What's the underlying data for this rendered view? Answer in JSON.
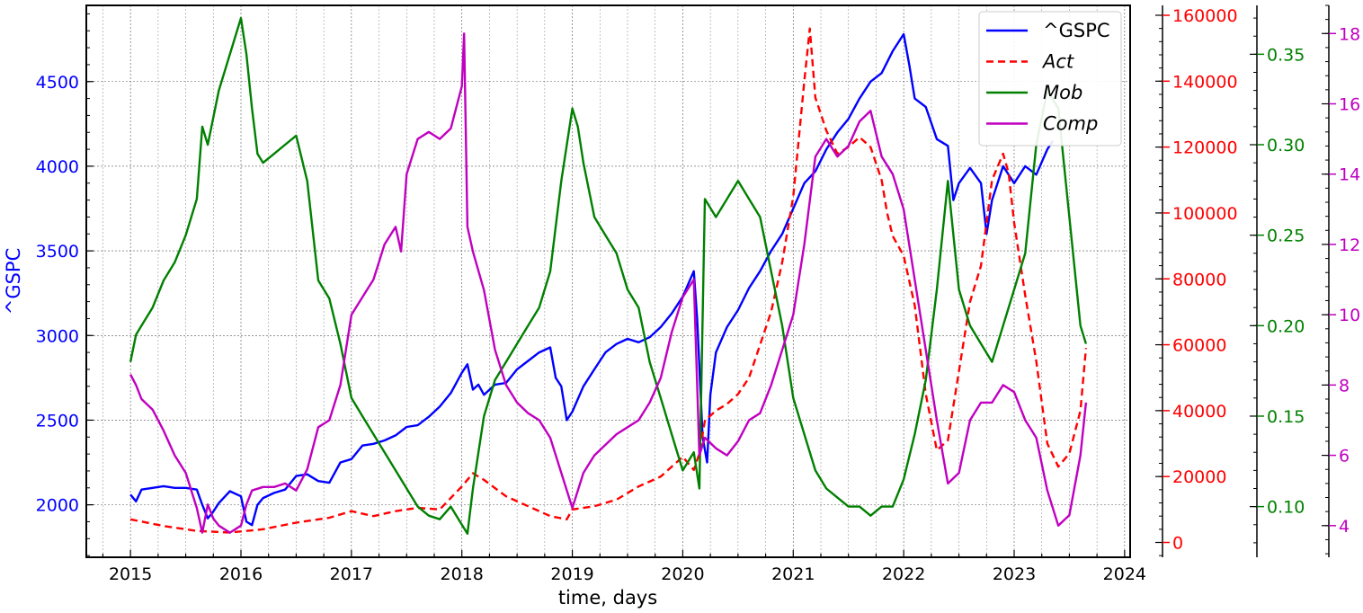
{
  "chart_data": {
    "type": "line",
    "xlabel": "time, days",
    "x_ticks": [
      "2015",
      "2016",
      "2017",
      "2018",
      "2019",
      "2020",
      "2021",
      "2022",
      "2023",
      "2024"
    ],
    "xlim": [
      2014.6,
      2024.05
    ],
    "axes": [
      {
        "id": "gspc",
        "label": "^GSPC",
        "color": "#0000ff",
        "lim": [
          1690,
          4950
        ],
        "ticks": [
          2000,
          2500,
          3000,
          3500,
          4000,
          4500
        ]
      },
      {
        "id": "act",
        "label": "",
        "color": "#ff0000",
        "lim": [
          -4500,
          163000
        ],
        "ticks": [
          0,
          20000,
          40000,
          60000,
          80000,
          100000,
          120000,
          140000,
          160000
        ]
      },
      {
        "id": "mob",
        "label": "",
        "color": "#008000",
        "lim": [
          0.072,
          0.377
        ],
        "ticks": [
          0.1,
          0.15,
          0.2,
          0.25,
          0.3,
          0.35
        ]
      },
      {
        "id": "comp",
        "label": "",
        "color": "#c000c0",
        "lim": [
          3.1,
          18.8
        ],
        "ticks": [
          4,
          6,
          8,
          10,
          12,
          14,
          16,
          18
        ]
      }
    ],
    "grid": true,
    "legend_position": "top-right",
    "legend": [
      "^GSPC",
      "Act",
      "Mob",
      "Comp"
    ],
    "series": [
      {
        "name": "^GSPC",
        "axis": "gspc",
        "color": "#0000ff",
        "dash": "solid",
        "x": [
          2015.0,
          2015.05,
          2015.1,
          2015.2,
          2015.3,
          2015.4,
          2015.5,
          2015.6,
          2015.65,
          2015.7,
          2015.75,
          2015.8,
          2015.9,
          2016.0,
          2016.05,
          2016.1,
          2016.15,
          2016.2,
          2016.3,
          2016.4,
          2016.5,
          2016.6,
          2016.7,
          2016.8,
          2016.9,
          2017.0,
          2017.1,
          2017.2,
          2017.3,
          2017.4,
          2017.5,
          2017.6,
          2017.7,
          2017.8,
          2017.9,
          2018.0,
          2018.05,
          2018.1,
          2018.15,
          2018.2,
          2018.3,
          2018.4,
          2018.5,
          2018.6,
          2018.7,
          2018.8,
          2018.85,
          2018.9,
          2018.95,
          2019.0,
          2019.1,
          2019.2,
          2019.3,
          2019.4,
          2019.5,
          2019.6,
          2019.7,
          2019.8,
          2019.9,
          2020.0,
          2020.1,
          2020.13,
          2020.18,
          2020.22,
          2020.25,
          2020.3,
          2020.4,
          2020.5,
          2020.6,
          2020.7,
          2020.8,
          2020.9,
          2021.0,
          2021.1,
          2021.2,
          2021.3,
          2021.4,
          2021.5,
          2021.6,
          2021.7,
          2021.8,
          2021.9,
          2022.0,
          2022.05,
          2022.1,
          2022.2,
          2022.3,
          2022.4,
          2022.45,
          2022.5,
          2022.6,
          2022.7,
          2022.75,
          2022.8,
          2022.9,
          2023.0,
          2023.1,
          2023.2,
          2023.3,
          2023.35
        ],
        "y": [
          2060,
          2020,
          2090,
          2100,
          2110,
          2100,
          2100,
          2090,
          2000,
          1920,
          1960,
          2010,
          2080,
          2050,
          1900,
          1880,
          2000,
          2040,
          2070,
          2090,
          2170,
          2180,
          2140,
          2130,
          2250,
          2270,
          2350,
          2360,
          2380,
          2410,
          2460,
          2470,
          2520,
          2580,
          2660,
          2780,
          2830,
          2680,
          2710,
          2650,
          2710,
          2720,
          2800,
          2850,
          2900,
          2930,
          2750,
          2700,
          2500,
          2550,
          2700,
          2800,
          2900,
          2950,
          2980,
          2960,
          2990,
          3050,
          3130,
          3230,
          3380,
          3100,
          2400,
          2250,
          2650,
          2900,
          3050,
          3150,
          3280,
          3380,
          3500,
          3600,
          3750,
          3900,
          3970,
          4100,
          4200,
          4280,
          4400,
          4500,
          4550,
          4680,
          4780,
          4600,
          4400,
          4350,
          4160,
          4120,
          3800,
          3900,
          3990,
          3900,
          3600,
          3800,
          4000,
          3900,
          4000,
          3950,
          4100,
          4150
        ]
      },
      {
        "name": "Act",
        "axis": "act",
        "color": "#ff0000",
        "dash": "dashed",
        "x": [
          2015.0,
          2015.3,
          2015.6,
          2015.9,
          2016.2,
          2016.5,
          2016.8,
          2017.0,
          2017.2,
          2017.4,
          2017.6,
          2017.8,
          2018.0,
          2018.1,
          2018.2,
          2018.4,
          2018.6,
          2018.8,
          2018.95,
          2019.0,
          2019.2,
          2019.4,
          2019.6,
          2019.8,
          2020.0,
          2020.1,
          2020.15,
          2020.2,
          2020.3,
          2020.4,
          2020.5,
          2020.6,
          2020.7,
          2020.8,
          2020.9,
          2021.0,
          2021.1,
          2021.15,
          2021.2,
          2021.3,
          2021.4,
          2021.5,
          2021.6,
          2021.7,
          2021.8,
          2021.85,
          2021.9,
          2022.0,
          2022.1,
          2022.2,
          2022.3,
          2022.4,
          2022.5,
          2022.6,
          2022.7,
          2022.8,
          2022.9,
          2022.95,
          2023.0,
          2023.1,
          2023.2,
          2023.3,
          2023.4,
          2023.5,
          2023.6,
          2023.65
        ],
        "y": [
          7000,
          5000,
          3500,
          3000,
          4000,
          6000,
          7500,
          9500,
          8000,
          9500,
          10500,
          10000,
          17000,
          21000,
          19000,
          14000,
          11000,
          8000,
          7000,
          10000,
          11000,
          13000,
          17000,
          20000,
          26000,
          22000,
          27000,
          37000,
          40000,
          42000,
          45000,
          50000,
          60000,
          70000,
          85000,
          105000,
          140000,
          156000,
          135000,
          125000,
          118000,
          120000,
          123000,
          120000,
          110000,
          100000,
          93000,
          87000,
          72000,
          45000,
          28000,
          31000,
          52000,
          73000,
          84000,
          110000,
          118000,
          112000,
          97000,
          75000,
          55000,
          30000,
          23000,
          27000,
          40000,
          59000
        ]
      },
      {
        "name": "Mob",
        "axis": "mob",
        "color": "#008000",
        "dash": "solid",
        "x": [
          2015.0,
          2015.05,
          2015.1,
          2015.2,
          2015.3,
          2015.4,
          2015.5,
          2015.6,
          2015.65,
          2015.7,
          2015.8,
          2015.9,
          2016.0,
          2016.05,
          2016.1,
          2016.15,
          2016.2,
          2016.3,
          2016.4,
          2016.5,
          2016.6,
          2016.7,
          2016.8,
          2016.9,
          2017.0,
          2017.1,
          2017.2,
          2017.3,
          2017.4,
          2017.5,
          2017.6,
          2017.7,
          2017.8,
          2017.9,
          2018.0,
          2018.05,
          2018.1,
          2018.2,
          2018.3,
          2018.4,
          2018.5,
          2018.6,
          2018.7,
          2018.8,
          2018.9,
          2019.0,
          2019.05,
          2019.1,
          2019.2,
          2019.3,
          2019.4,
          2019.5,
          2019.6,
          2019.7,
          2019.8,
          2019.9,
          2020.0,
          2020.1,
          2020.15,
          2020.2,
          2020.3,
          2020.4,
          2020.5,
          2020.6,
          2020.7,
          2020.8,
          2020.9,
          2021.0,
          2021.1,
          2021.2,
          2021.3,
          2021.4,
          2021.5,
          2021.6,
          2021.7,
          2021.8,
          2021.9,
          2022.0,
          2022.1,
          2022.2,
          2022.3,
          2022.4,
          2022.5,
          2022.6,
          2022.7,
          2022.8,
          2022.9,
          2023.0,
          2023.1,
          2023.2,
          2023.3,
          2023.4,
          2023.5,
          2023.6,
          2023.65
        ],
        "y": [
          0.18,
          0.195,
          0.2,
          0.21,
          0.225,
          0.235,
          0.25,
          0.27,
          0.31,
          0.3,
          0.33,
          0.35,
          0.37,
          0.35,
          0.32,
          0.295,
          0.29,
          0.295,
          0.3,
          0.305,
          0.28,
          0.225,
          0.215,
          0.19,
          0.16,
          0.15,
          0.14,
          0.13,
          0.12,
          0.11,
          0.1,
          0.095,
          0.093,
          0.1,
          0.09,
          0.085,
          0.11,
          0.15,
          0.17,
          0.18,
          0.19,
          0.2,
          0.21,
          0.23,
          0.28,
          0.32,
          0.31,
          0.29,
          0.26,
          0.25,
          0.24,
          0.22,
          0.21,
          0.18,
          0.16,
          0.14,
          0.12,
          0.13,
          0.11,
          0.27,
          0.26,
          0.27,
          0.28,
          0.27,
          0.26,
          0.23,
          0.2,
          0.16,
          0.14,
          0.12,
          0.11,
          0.105,
          0.1,
          0.1,
          0.095,
          0.1,
          0.1,
          0.115,
          0.14,
          0.17,
          0.22,
          0.28,
          0.22,
          0.2,
          0.19,
          0.18,
          0.2,
          0.22,
          0.24,
          0.3,
          0.33,
          0.32,
          0.26,
          0.2,
          0.19
        ]
      },
      {
        "name": "Comp",
        "axis": "comp",
        "color": "#c000c0",
        "dash": "solid",
        "x": [
          2015.0,
          2015.05,
          2015.1,
          2015.2,
          2015.3,
          2015.4,
          2015.5,
          2015.6,
          2015.65,
          2015.7,
          2015.75,
          2015.8,
          2015.9,
          2016.0,
          2016.05,
          2016.1,
          2016.2,
          2016.3,
          2016.4,
          2016.5,
          2016.6,
          2016.7,
          2016.8,
          2016.9,
          2017.0,
          2017.1,
          2017.2,
          2017.3,
          2017.4,
          2017.45,
          2017.5,
          2017.6,
          2017.7,
          2017.8,
          2017.9,
          2018.0,
          2018.02,
          2018.05,
          2018.1,
          2018.2,
          2018.3,
          2018.4,
          2018.5,
          2018.6,
          2018.7,
          2018.8,
          2018.9,
          2019.0,
          2019.1,
          2019.2,
          2019.3,
          2019.4,
          2019.5,
          2019.6,
          2019.7,
          2019.8,
          2019.9,
          2020.0,
          2020.1,
          2020.15,
          2020.2,
          2020.3,
          2020.4,
          2020.5,
          2020.6,
          2020.7,
          2020.8,
          2020.9,
          2021.0,
          2021.1,
          2021.2,
          2021.3,
          2021.4,
          2021.5,
          2021.6,
          2021.7,
          2021.8,
          2021.9,
          2022.0,
          2022.1,
          2022.2,
          2022.3,
          2022.4,
          2022.5,
          2022.6,
          2022.7,
          2022.8,
          2022.9,
          2023.0,
          2023.1,
          2023.2,
          2023.3,
          2023.4,
          2023.5,
          2023.6,
          2023.65
        ],
        "y": [
          8.3,
          8.0,
          7.6,
          7.3,
          6.7,
          6.0,
          5.5,
          4.5,
          3.8,
          4.6,
          4.2,
          4.0,
          3.8,
          4.0,
          4.6,
          5.0,
          5.1,
          5.1,
          5.2,
          5.0,
          5.6,
          6.8,
          7.0,
          8.0,
          10.0,
          10.5,
          11.0,
          12.0,
          12.5,
          11.8,
          14.0,
          15.0,
          15.2,
          15.0,
          15.3,
          16.5,
          18.0,
          12.5,
          11.8,
          10.7,
          9.0,
          8.0,
          7.5,
          7.2,
          7.0,
          6.5,
          5.5,
          4.5,
          5.5,
          6.0,
          6.3,
          6.6,
          6.8,
          7.0,
          7.5,
          8.2,
          9.5,
          10.5,
          11.0,
          6.0,
          6.5,
          6.2,
          6.0,
          6.4,
          7.0,
          7.2,
          8.0,
          9.0,
          10.0,
          12.0,
          14.5,
          15.0,
          14.5,
          14.8,
          15.5,
          15.8,
          14.5,
          14.0,
          13.0,
          11.0,
          9.0,
          7.0,
          5.2,
          5.5,
          7.0,
          7.5,
          7.5,
          8.0,
          7.8,
          7.0,
          6.5,
          5.0,
          4.0,
          4.3,
          6.0,
          7.5
        ]
      }
    ]
  }
}
